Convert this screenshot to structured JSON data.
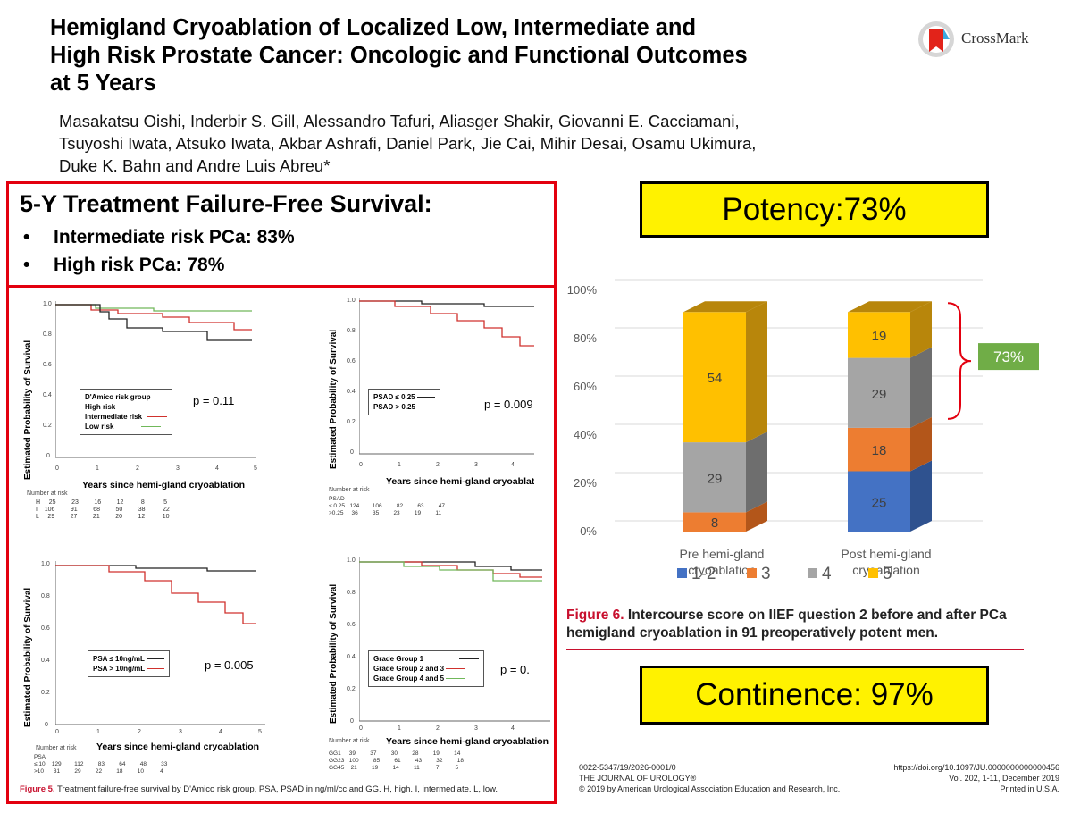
{
  "header": {
    "title_lines": [
      "Hemigland Cryoablation of Localized Low, Intermediate and",
      "High Risk Prostate Cancer: Oncologic and Functional Outcomes",
      "at 5 Years"
    ],
    "authors_lines": [
      "Masakatsu Oishi, Inderbir S. Gill, Alessandro Tafuri, Aliasger Shakir, Giovanni E. Cacciamani,",
      "Tsuyoshi Iwata, Atsuko Iwata, Akbar Ashrafi, Daniel Park, Jie Cai, Mihir Desai, Osamu Ukimura,",
      "Duke K. Bahn and Andre Luis Abreu*"
    ],
    "crossmark_label": "CrossMark"
  },
  "summary": {
    "heading": "5-Y Treatment Failure-Free Survival:",
    "bullets": [
      "Intermediate risk PCa: 83%",
      "High risk PCa: 78%"
    ],
    "bullet_symbol": "•"
  },
  "figure5": {
    "ylabel": "Estimated Probability of Survival",
    "xlabel": "Years since hemi-gland cryoablation",
    "number_at_risk_label": "Number at risk",
    "yticks": [
      "1.0",
      "0.8",
      "0.6",
      "0.4",
      "0.2",
      "0"
    ],
    "xticks": [
      "0",
      "1",
      "2",
      "3",
      "4",
      "5"
    ],
    "panels": [
      {
        "legend_title": "D'Amico risk group",
        "legend": [
          "High risk",
          "Intermediate risk",
          "Low risk"
        ],
        "pvalue": "p = 0.11",
        "risk_rows": [
          "H     25         23         16         12          8           5",
          "I    106         91         68         50         38          22",
          "L     29         27         21         20         12          10"
        ]
      },
      {
        "legend_title": "",
        "legend": [
          "PSAD ≤ 0.25",
          "PSAD > 0.25"
        ],
        "pvalue": "p = 0.009",
        "risk_rows": [
          "PSAD",
          "≤ 0.25   124        106         82         63         47",
          ">0.25     36         35         23         19         11"
        ]
      },
      {
        "legend_title": "",
        "legend": [
          "PSA ≤ 10ng/mL",
          "PSA > 10ng/mL"
        ],
        "pvalue": "p = 0.005",
        "risk_rows": [
          "PSA",
          "≤ 10    129        112         83         64         48         33",
          ">10      31         29         22         18         10          4"
        ]
      },
      {
        "legend_title": "",
        "legend": [
          "Grade Group 1",
          "Grade Group 2 and 3",
          "Grade Group 4 and 5"
        ],
        "pvalue": "p = 0.",
        "risk_rows": [
          "GG1     39         37         30         28         19         14",
          "GG23   100         85         61         43         32         18",
          "GG45    21         19         14         11          7          5"
        ]
      }
    ],
    "caption_label": "Figure 5.",
    "caption_text": " Treatment failure-free survival by D'Amico risk group, PSA, PSAD in ng/ml/cc and GG. H, high. I, intermediate. L, low."
  },
  "potency": {
    "label": "Potency:73%"
  },
  "continence": {
    "label": "Continence: 97%"
  },
  "chart_data": {
    "type": "bar",
    "stacked": true,
    "categories": [
      "Pre hemi-gland cryoablation",
      "Post hemi-gland cryoablation"
    ],
    "category_lines": [
      [
        "Pre hemi-gland",
        "cryoablation"
      ],
      [
        "Post hemi-gland",
        "cryoablation"
      ]
    ],
    "series": [
      {
        "name": "1-2",
        "values": [
          0,
          25
        ],
        "labels": [
          "",
          "25"
        ],
        "color": "#4472c4",
        "dark": "#2f528f"
      },
      {
        "name": "3",
        "values": [
          8,
          18
        ],
        "labels": [
          "8",
          "18"
        ],
        "color": "#ed7d31",
        "dark": "#b3561a"
      },
      {
        "name": "4",
        "values": [
          29,
          29
        ],
        "labels": [
          "29",
          "29"
        ],
        "color": "#a5a5a5",
        "dark": "#6e6e6e"
      },
      {
        "name": "5",
        "values": [
          54,
          19
        ],
        "labels": [
          "54",
          "19"
        ],
        "color": "#ffc000",
        "dark": "#b8860b"
      }
    ],
    "yticks": [
      "0%",
      "20%",
      "40%",
      "60%",
      "80%",
      "100%"
    ],
    "ylim": [
      0,
      100
    ],
    "legend_position": "bottom",
    "bracket_label": "73%",
    "bracket_color": "#70ad47"
  },
  "figure6": {
    "caption_label": "Figure 6.",
    "caption_text": " Intercourse score on IIEF question 2 before and after PCa hemigland cryoablation in 91 preoperatively potent men."
  },
  "footer": {
    "left_lines": [
      "0022-5347/19/2026-0001/0",
      "THE JOURNAL OF UROLOGY®",
      "© 2019 by American Urological Association Education and Research, Inc."
    ],
    "right_lines": [
      "https://doi.org/10.1097/JU.0000000000000456",
      "Vol. 202, 1-11, December 2019",
      "Printed in U.S.A."
    ]
  }
}
